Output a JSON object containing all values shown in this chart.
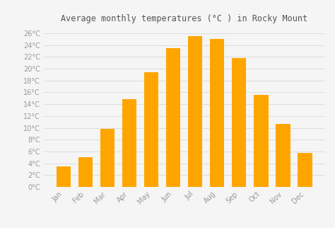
{
  "title": "Average monthly temperatures (°C ) in Rocky Mount",
  "months": [
    "Jan",
    "Feb",
    "Mar",
    "Apr",
    "May",
    "Jun",
    "Jul",
    "Aug",
    "Sep",
    "Oct",
    "Nov",
    "Dec"
  ],
  "values": [
    3.5,
    5.0,
    9.8,
    14.8,
    19.4,
    23.5,
    25.5,
    25.0,
    21.8,
    15.6,
    10.7,
    5.8
  ],
  "bar_color": "#FFA500",
  "bar_color2": "#FFB833",
  "background_color": "#f5f5f5",
  "grid_color": "#dddddd",
  "ytick_labels": [
    "0°C",
    "2°C",
    "4°C",
    "6°C",
    "8°C",
    "10°C",
    "12°C",
    "14°C",
    "16°C",
    "18°C",
    "20°C",
    "22°C",
    "24°C",
    "26°C"
  ],
  "ytick_values": [
    0,
    2,
    4,
    6,
    8,
    10,
    12,
    14,
    16,
    18,
    20,
    22,
    24,
    26
  ],
  "ylim": [
    0,
    27
  ],
  "title_fontsize": 8.5,
  "tick_fontsize": 7,
  "tick_color": "#999999",
  "label_color": "#999999",
  "title_color": "#555555"
}
